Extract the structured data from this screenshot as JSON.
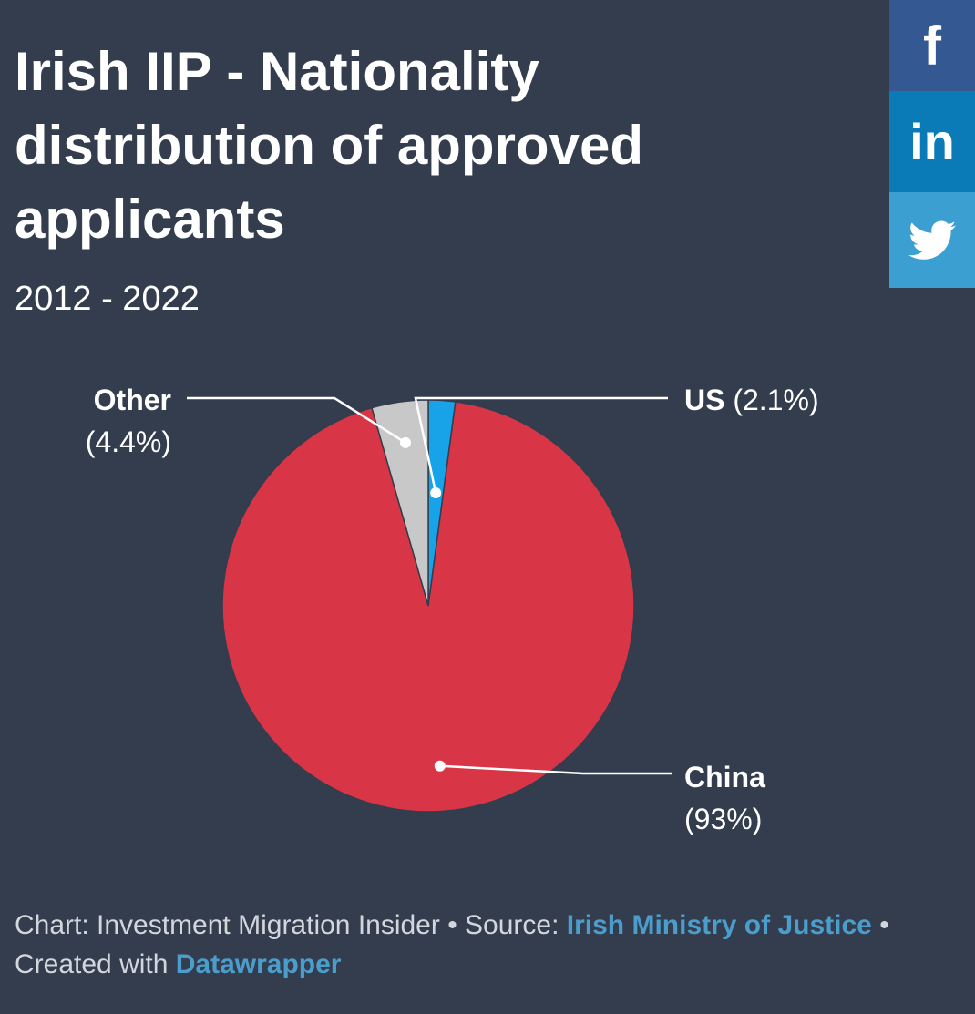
{
  "title": "Irish IIP - Nationality distribution of approved applicants",
  "subtitle": "2012 - 2022",
  "colors": {
    "background": "#333d4d",
    "facebook": "#345891",
    "linkedin": "#0a7bb6",
    "twitter": "#3c9fd1",
    "link": "#4b9dcc"
  },
  "social": [
    {
      "name": "facebook",
      "glyph": "f",
      "icon": "facebook-icon"
    },
    {
      "name": "linkedin",
      "glyph": "in",
      "icon": "linkedin-icon"
    },
    {
      "name": "twitter",
      "glyph": "",
      "icon": "twitter-bird-icon"
    }
  ],
  "chart_data": {
    "type": "pie",
    "title": "Irish IIP - Nationality distribution of approved applicants",
    "subtitle": "2012 - 2022",
    "slices": [
      {
        "name": "US",
        "value": 2.1,
        "value_label": "(2.1%)",
        "color": "#18a3e8"
      },
      {
        "name": "China",
        "value": 93,
        "value_label": "(93%)",
        "color": "#d83546"
      },
      {
        "name": "Other",
        "value": 4.4,
        "value_label": "(4.4%)",
        "color": "#c8c8c8"
      }
    ]
  },
  "footer": {
    "chart_prefix": "Chart: Investment Migration Insider • Source: ",
    "source_link": "Irish Ministry of Justice",
    "created_prefix": " • Created with ",
    "created_link": "Datawrapper"
  }
}
